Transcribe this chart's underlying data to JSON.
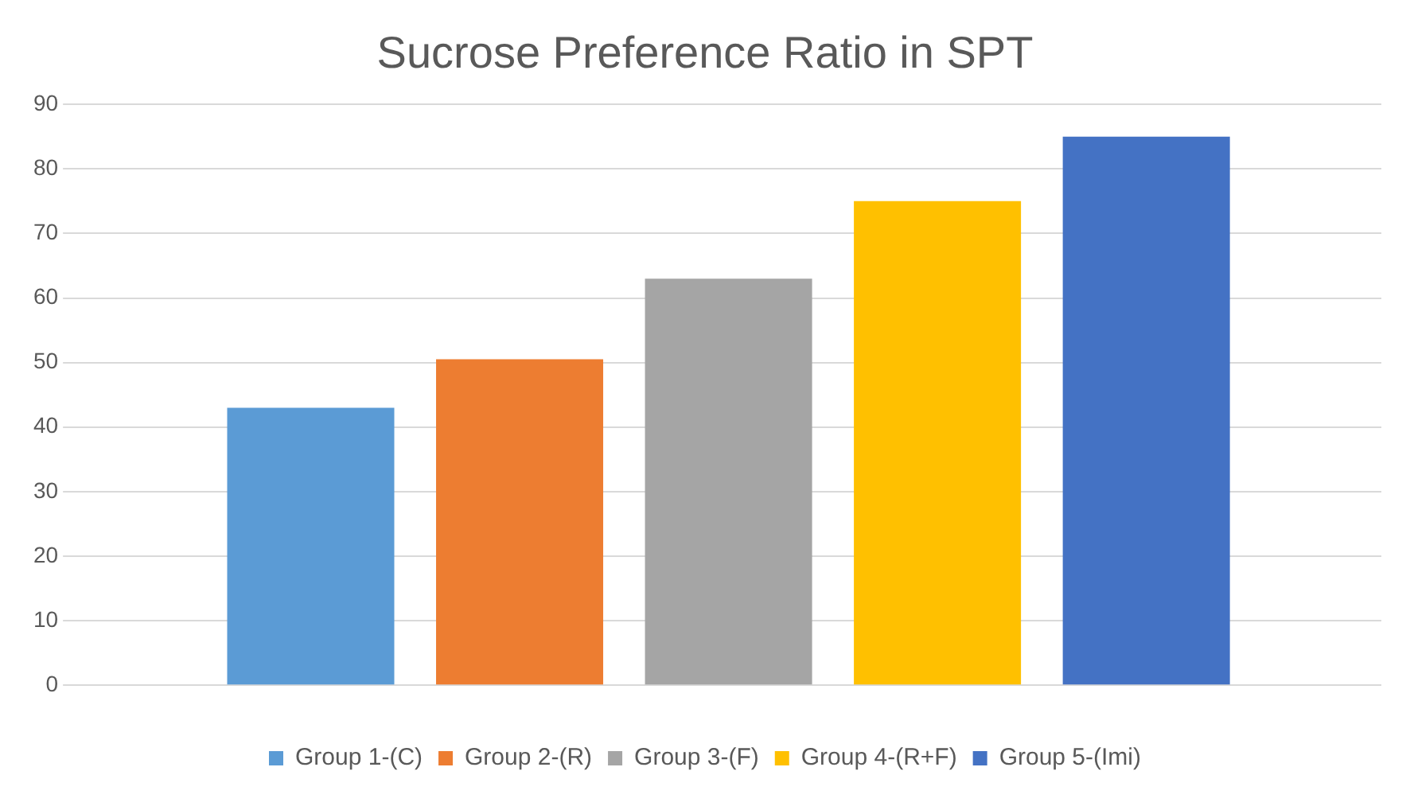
{
  "chart_data": {
    "type": "bar",
    "title": "Sucrose Preference Ratio in SPT",
    "categories": [
      null
    ],
    "series": [
      {
        "name": "Group 1-(C)",
        "color": "#5b9bd5",
        "values": [
          43
        ]
      },
      {
        "name": "Group 2-(R)",
        "color": "#ed7d31",
        "values": [
          50.5
        ]
      },
      {
        "name": "Group 3-(F)",
        "color": "#a5a5a5",
        "values": [
          63
        ]
      },
      {
        "name": "Group 4-(R+F)",
        "color": "#ffc000",
        "values": [
          75
        ]
      },
      {
        "name": "Group 5-(Imi)",
        "color": "#4472c4",
        "values": [
          85
        ]
      }
    ],
    "ylim": [
      0,
      90
    ],
    "yticks": [
      0,
      10,
      20,
      30,
      40,
      50,
      60,
      70,
      80,
      90
    ],
    "grid": "y",
    "legend": "bottom"
  }
}
